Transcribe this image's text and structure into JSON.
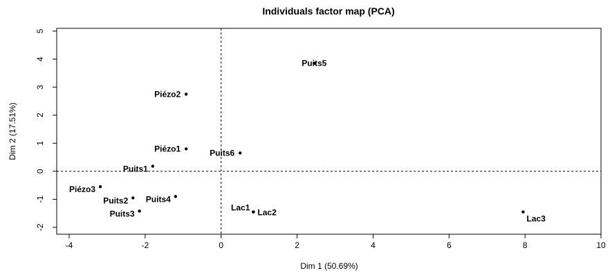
{
  "chart_data": {
    "type": "scatter",
    "title": "Individuals factor map (PCA)",
    "xlabel": "Dim 1 (50.69%)",
    "ylabel": "Dim 2 (17.51%)",
    "xlim": [
      -4,
      10
    ],
    "ylim": [
      -2,
      5
    ],
    "xticks": [
      "-4",
      "-2",
      "0",
      "2",
      "4",
      "6",
      "8",
      "10"
    ],
    "yticks": [
      "-2",
      "-1",
      "0",
      "1",
      "2",
      "3",
      "4",
      "5"
    ],
    "reference_lines": {
      "x": 0,
      "y": 0,
      "style": "dashed"
    },
    "grid": false,
    "points": [
      {
        "label": "Puits5",
        "x": 2.45,
        "y": 3.85,
        "label_pos": "over"
      },
      {
        "label": "Piézo2",
        "x": -0.92,
        "y": 2.75,
        "label_pos": "left"
      },
      {
        "label": "Piézo1",
        "x": -0.92,
        "y": 0.8,
        "label_pos": "left"
      },
      {
        "label": "Puits6",
        "x": 0.5,
        "y": 0.65,
        "label_pos": "left"
      },
      {
        "label": "Puits1",
        "x": -1.8,
        "y": 0.18,
        "label_pos": "below-left"
      },
      {
        "label": "Piézo3",
        "x": -3.18,
        "y": -0.55,
        "label_pos": "below-left"
      },
      {
        "label": "Puits2",
        "x": -2.32,
        "y": -0.95,
        "label_pos": "below-left"
      },
      {
        "label": "Puits4",
        "x": -1.2,
        "y": -0.9,
        "label_pos": "below-left"
      },
      {
        "label": "Puits3",
        "x": -2.15,
        "y": -1.42,
        "label_pos": "below-left"
      },
      {
        "label": "Lac1",
        "x": 0.85,
        "y": -1.45,
        "label_pos": "above-left"
      },
      {
        "label": "Lac2",
        "x": 0.85,
        "y": -1.45,
        "label_pos": "right"
      },
      {
        "label": "Lac3",
        "x": 7.95,
        "y": -1.45,
        "label_pos": "below-right"
      }
    ]
  }
}
